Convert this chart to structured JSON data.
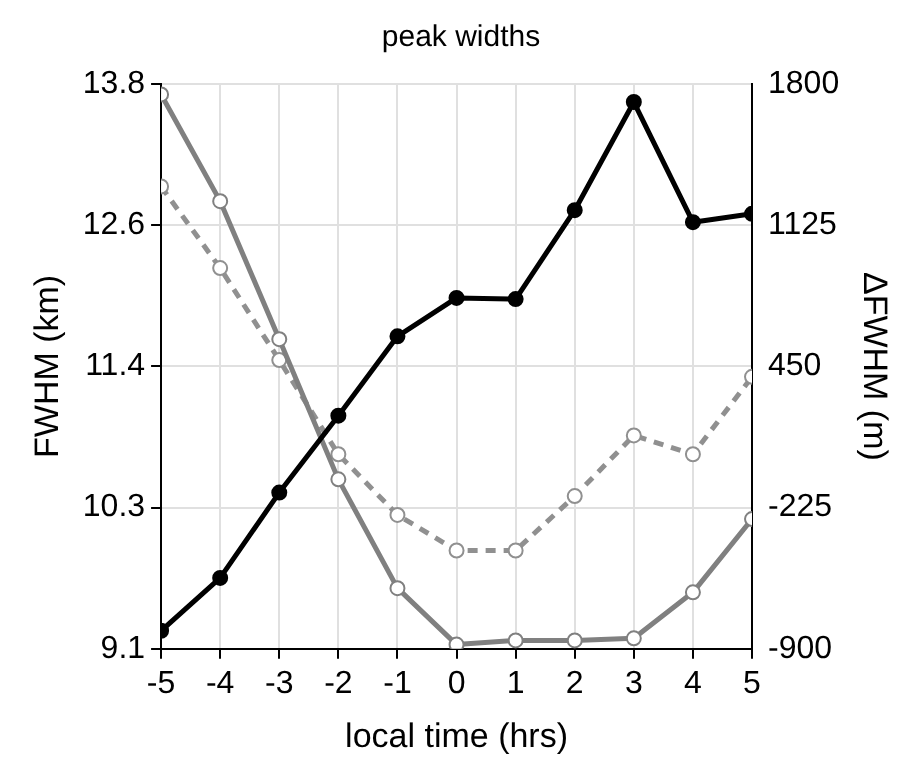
{
  "chart_data": {
    "type": "line",
    "title": "peak widths",
    "xlabel": "local time (hrs)",
    "ylabel": "FWHM (km)",
    "y2label": "ΔFWHM (m)",
    "x": [
      -5,
      -4,
      -3,
      -2,
      -1,
      0,
      1,
      2,
      3,
      4,
      5
    ],
    "series": [
      {
        "color": "#000000",
        "values": [
          9.25,
          9.69,
          10.4,
          11.04,
          11.7,
          12.02,
          12.01,
          12.75,
          13.65,
          12.65,
          12.72
        ],
        "line_style": "solid"
      },
      {
        "color": "#808080",
        "axis": "y2",
        "values": [
          1750,
          1240,
          580,
          -90,
          -610,
          -880,
          -860,
          -860,
          -850,
          -630,
          -280
        ],
        "line_style": "solid"
      },
      {
        "color": "#909090",
        "axis": "y2",
        "values": [
          1310,
          920,
          480,
          30,
          -260,
          -430,
          -430,
          -170,
          120,
          30,
          400
        ],
        "line_style": "dashed"
      }
    ],
    "xlim": [
      -5,
      5
    ],
    "xticks": [
      -5,
      -4,
      -3,
      -2,
      -1,
      0,
      1,
      2,
      3,
      4,
      5
    ],
    "ylim": [
      9.1,
      13.8
    ],
    "yticks": [
      9.1,
      {
        "value": 10.275,
        "label": "10.3"
      },
      {
        "value": 11.45,
        "label": "11.4"
      },
      {
        "value": 12.625,
        "label": "12.6"
      },
      13.8
    ],
    "y2lim": [
      -900,
      1800
    ],
    "y2ticks": [
      -900,
      -225,
      450,
      1125,
      1800
    ],
    "grid": true,
    "legend": false,
    "marker": "circle"
  }
}
